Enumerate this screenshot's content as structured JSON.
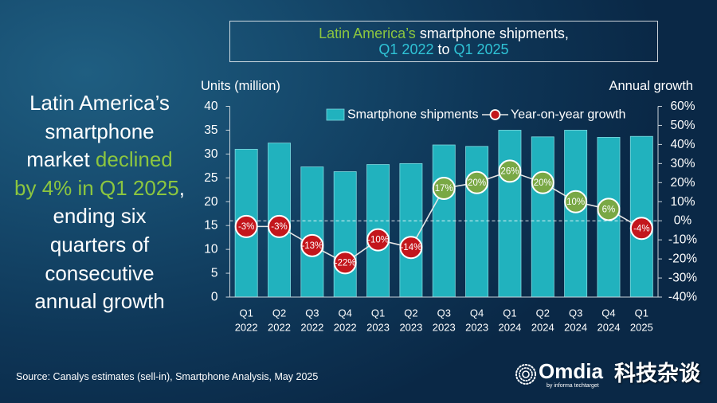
{
  "headline": {
    "l1": "Latin America’s",
    "l2": "smartphone",
    "l3a": "market ",
    "l3b": "declined",
    "l4a": "by 4% in Q1 2025",
    "l4b": ",",
    "l5": "ending six",
    "l6": "quarters of",
    "l7": "consecutive",
    "l8": "annual growth"
  },
  "chart_data": {
    "type": "bar",
    "title": {
      "region": "Latin America’s",
      "subject": " smartphone shipments,",
      "start": "Q1 2022",
      "to": " to ",
      "end": "Q1 2025"
    },
    "categories": [
      {
        "quarter": "Q1",
        "year": "2022"
      },
      {
        "quarter": "Q2",
        "year": "2022"
      },
      {
        "quarter": "Q3",
        "year": "2022"
      },
      {
        "quarter": "Q4",
        "year": "2022"
      },
      {
        "quarter": "Q1",
        "year": "2023"
      },
      {
        "quarter": "Q2",
        "year": "2023"
      },
      {
        "quarter": "Q3",
        "year": "2023"
      },
      {
        "quarter": "Q4",
        "year": "2023"
      },
      {
        "quarter": "Q1",
        "year": "2024"
      },
      {
        "quarter": "Q2",
        "year": "2024"
      },
      {
        "quarter": "Q3",
        "year": "2024"
      },
      {
        "quarter": "Q4",
        "year": "2024"
      },
      {
        "quarter": "Q1",
        "year": "2025"
      }
    ],
    "xlabel": "",
    "ylabel": "Units (million)",
    "ylim": [
      0,
      40
    ],
    "yticks": [
      0,
      5,
      10,
      15,
      20,
      25,
      30,
      35,
      40
    ],
    "y2label": "Annual growth",
    "y2lim": [
      -40,
      60
    ],
    "y2ticks": [
      -40,
      -30,
      -20,
      -10,
      0,
      10,
      20,
      30,
      40,
      50,
      60
    ],
    "y2tick_labels": [
      "-40%",
      "-30%",
      "-20%",
      "-10%",
      "0%",
      "10%",
      "20%",
      "30%",
      "40%",
      "50%",
      "60%"
    ],
    "y2_reference_line": 0,
    "series": [
      {
        "name": "Smartphone shipments",
        "type": "bar",
        "values": [
          31.0,
          32.3,
          27.3,
          26.3,
          27.8,
          28.0,
          31.9,
          31.6,
          35.0,
          33.6,
          35.0,
          33.5,
          33.7
        ]
      },
      {
        "name": "Year-on-year growth",
        "type": "line",
        "values": [
          -3,
          -3,
          -13,
          -22,
          -10,
          -14,
          17,
          20,
          26,
          20,
          10,
          6,
          -4
        ],
        "labels": [
          "-3%",
          "-3%",
          "-13%",
          "-22%",
          "-10%",
          "-14%",
          "17%",
          "20%",
          "26%",
          "20%",
          "10%",
          "6%",
          "-4%"
        ]
      }
    ],
    "legend": {
      "placement": "top-center"
    },
    "grid": false,
    "colors": {
      "bar": "#21b2be",
      "marker_positive": "#79a845",
      "marker_negative": "#c3161c",
      "line": "#e6e6e6"
    }
  },
  "source": "Source: Canalys estimates (sell-in), Smartphone Analysis, May 2025",
  "brand": {
    "logo_text": "Omdia",
    "logo_subtext": "by informa techtarget",
    "watermark": "科技杂谈"
  },
  "colors": {
    "background": "#0e3657",
    "highlight_green": "#8cc63f",
    "title_cyan": "#2fc3d6",
    "text": "#ffffff"
  }
}
